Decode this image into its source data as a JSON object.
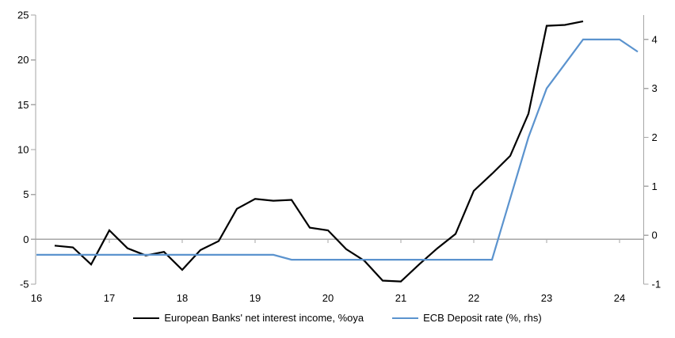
{
  "chart_data": {
    "type": "line",
    "title": "",
    "x_axis": {
      "ticks": [
        "16",
        "17",
        "18",
        "19",
        "20",
        "21",
        "22",
        "23",
        "24"
      ],
      "range": [
        16,
        24.33
      ]
    },
    "y_axis_left": {
      "ticks": [
        -5,
        0,
        5,
        10,
        15,
        20,
        25
      ],
      "range": [
        -5,
        25
      ]
    },
    "y_axis_right": {
      "ticks": [
        -1,
        0,
        1,
        2,
        3,
        4
      ],
      "range": [
        -1,
        4.5
      ]
    },
    "grid": "zero-line-only",
    "legend_position": "bottom",
    "series": [
      {
        "name": "European Banks' net interest income, %oya",
        "axis": "left",
        "color": "#000000",
        "x": [
          16.25,
          16.5,
          16.75,
          17.0,
          17.25,
          17.5,
          17.75,
          18.0,
          18.25,
          18.5,
          18.75,
          19.0,
          19.25,
          19.5,
          19.75,
          20.0,
          20.25,
          20.5,
          20.75,
          21.0,
          21.25,
          21.5,
          21.75,
          22.0,
          22.25,
          22.5,
          22.75,
          23.0,
          23.25,
          23.5
        ],
        "values": [
          -0.7,
          -0.9,
          -2.8,
          1.0,
          -1.0,
          -1.8,
          -1.4,
          -3.4,
          -1.2,
          -0.2,
          3.4,
          4.5,
          4.3,
          4.4,
          1.3,
          1.0,
          -1.1,
          -2.4,
          -4.6,
          -4.7,
          -2.8,
          -1.0,
          0.6,
          5.4,
          7.3,
          9.3,
          14.0,
          23.8,
          23.9,
          24.3
        ]
      },
      {
        "name": "ECB Deposit rate (%, rhs)",
        "axis": "right",
        "color": "#5B93CE",
        "x": [
          16.0,
          16.25,
          16.5,
          16.75,
          17.0,
          17.25,
          17.5,
          17.75,
          18.0,
          18.25,
          18.5,
          18.75,
          19.0,
          19.25,
          19.5,
          19.75,
          20.0,
          20.25,
          20.5,
          20.75,
          21.0,
          21.25,
          21.5,
          21.75,
          22.0,
          22.25,
          22.5,
          22.75,
          23.0,
          23.25,
          23.5,
          23.75,
          24.0,
          24.25
        ],
        "values": [
          -0.4,
          -0.4,
          -0.4,
          -0.4,
          -0.4,
          -0.4,
          -0.4,
          -0.4,
          -0.4,
          -0.4,
          -0.4,
          -0.4,
          -0.4,
          -0.4,
          -0.5,
          -0.5,
          -0.5,
          -0.5,
          -0.5,
          -0.5,
          -0.5,
          -0.5,
          -0.5,
          -0.5,
          -0.5,
          -0.5,
          0.75,
          2.0,
          3.0,
          3.5,
          4.0,
          4.0,
          4.0,
          3.75
        ]
      }
    ],
    "colors": {
      "axis": "#A6A6A6",
      "text": "#000000",
      "background": "#FFFFFF"
    }
  }
}
